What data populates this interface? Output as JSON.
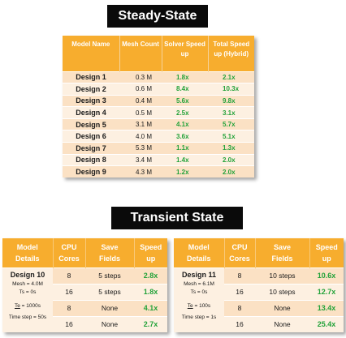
{
  "steady": {
    "title": "Steady-State",
    "headers": [
      "Model Name",
      "Mesh Count",
      "Solver Speed up",
      "Total Speed up (Hybrid)"
    ],
    "rows": [
      {
        "name": "Design 1",
        "mesh": "0.3 M",
        "solver": "1.8x",
        "total": "2.1x"
      },
      {
        "name": "Design 2",
        "mesh": "0.6 M",
        "solver": "8.4x",
        "total": "10.3x"
      },
      {
        "name": "Design 3",
        "mesh": "0.4 M",
        "solver": "5.6x",
        "total": "9.8x"
      },
      {
        "name": "Design 4",
        "mesh": "0.5 M",
        "solver": "2.5x",
        "total": "3.1x"
      },
      {
        "name": "Design 5",
        "mesh": "3.1 M",
        "solver": "4.1x",
        "total": "5.7x"
      },
      {
        "name": "Design 6",
        "mesh": "4.0 M",
        "solver": "3.6x",
        "total": "5.1x"
      },
      {
        "name": "Design 7",
        "mesh": "5.3 M",
        "solver": "1.1x",
        "total": "1.3x"
      },
      {
        "name": "Design 8",
        "mesh": "3.4 M",
        "solver": "1.4x",
        "total": "2.0x"
      },
      {
        "name": "Design 9",
        "mesh": "4.3 M",
        "solver": "1.2x",
        "total": "2.0x"
      }
    ]
  },
  "transient": {
    "title": "Transient State",
    "headers": {
      "model_l1": "Model",
      "model_l2": "Details",
      "cpu_l1": "CPU",
      "cpu_l2": "Cores",
      "save_l1": "Save",
      "save_l2": "Fields",
      "speed_l1": "Speed",
      "speed_l2": "up"
    },
    "design10": {
      "name": "Design 10",
      "mesh": "Mesh = 4.0M",
      "ts": "Ts = 0s",
      "te_label": "Te",
      "te_value": " = 1000s",
      "timestep": "Time step = 50s",
      "rows": [
        {
          "cores": "8",
          "fields": "5 steps",
          "speed": "2.8x"
        },
        {
          "cores": "16",
          "fields": "5 steps",
          "speed": "1.8x"
        },
        {
          "cores": "8",
          "fields": "None",
          "speed": "4.1x"
        },
        {
          "cores": "16",
          "fields": "None",
          "speed": "2.7x"
        }
      ]
    },
    "design11": {
      "name": "Design 11",
      "mesh": "Mesh = 6.1M",
      "ts": "Ts = 0s",
      "te_label": "Te",
      "te_value": " = 100s",
      "timestep": "Time step = 1s",
      "rows": [
        {
          "cores": "8",
          "fields": "10 steps",
          "speed": "10.6x"
        },
        {
          "cores": "16",
          "fields": "10 steps",
          "speed": "12.7x"
        },
        {
          "cores": "8",
          "fields": "None",
          "speed": "13.4x"
        },
        {
          "cores": "16",
          "fields": "None",
          "speed": "25.4x"
        }
      ]
    }
  }
}
